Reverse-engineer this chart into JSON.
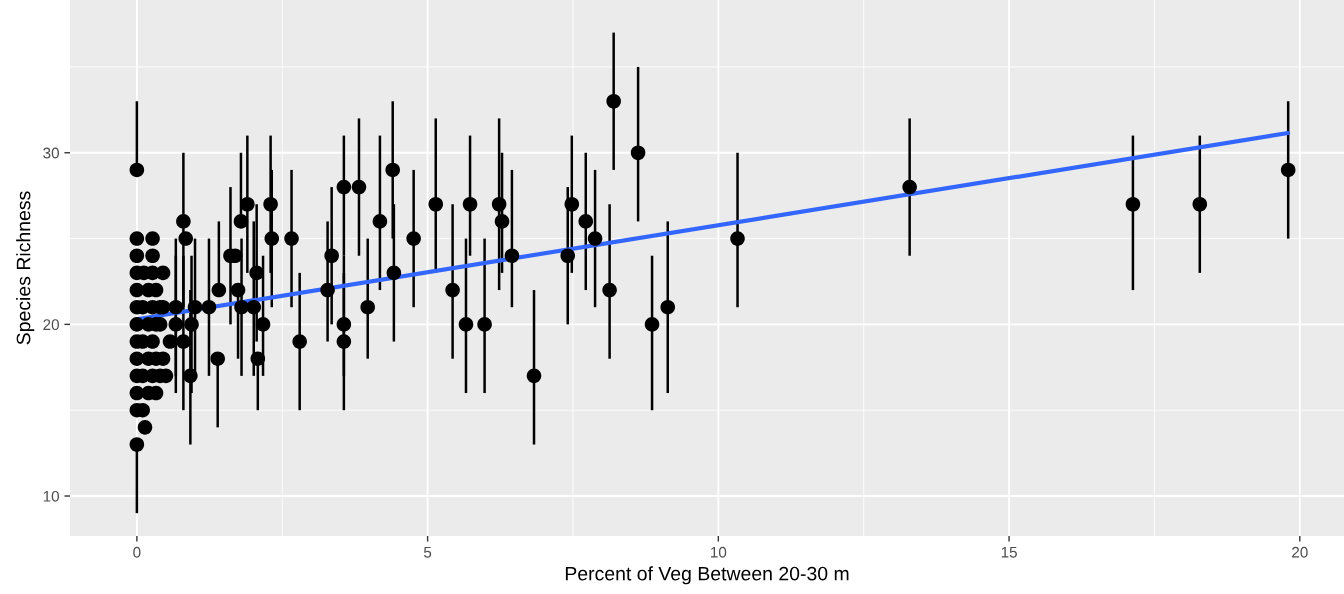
{
  "chart_data": {
    "type": "scatter",
    "xlabel": "Percent of Veg Between 20-30 m",
    "ylabel": "Species Richness",
    "xlim": [
      -1.15,
      20.76
    ],
    "ylim": [
      7.67,
      38.9
    ],
    "xticks": [
      0,
      5,
      10,
      15,
      20
    ],
    "yticks": [
      10,
      20,
      30
    ],
    "grid": true,
    "marker": "circle",
    "series": [
      {
        "color": "#000000",
        "x": [
          0,
          0,
          0,
          0,
          0,
          0,
          0,
          0,
          0,
          0,
          0,
          0,
          0,
          0.1,
          0.1,
          0.1,
          0.1,
          0.14,
          0.12,
          0.2,
          0.2,
          0.2,
          0.2,
          0.27,
          0.27,
          0.27,
          0.27,
          0.27,
          0.27,
          0.33,
          0.33,
          0.33,
          0.33,
          0.4,
          0.4,
          0.4,
          0.45,
          0.45,
          0.45,
          0.5,
          0.57,
          0.67,
          0.67,
          0.8,
          0.8,
          0.84,
          0.92,
          0.94,
          1.0,
          1.24,
          1.39,
          1.41,
          1.61,
          1.69,
          1.74,
          1.79,
          1.8,
          1.9,
          2.01,
          2.06,
          2.08,
          2.17,
          2.3,
          2.32,
          2.66,
          2.8,
          3.28,
          3.35,
          3.56,
          3.56,
          3.56,
          3.82,
          3.97,
          4.18,
          4.4,
          4.42,
          4.76,
          5.14,
          5.43,
          5.66,
          5.73,
          5.98,
          6.23,
          6.28,
          6.45,
          6.83,
          7.41,
          7.48,
          7.72,
          7.88,
          8.13,
          8.2,
          8.62,
          8.86,
          9.13,
          10.33,
          13.29,
          17.13,
          18.28,
          19.8
        ],
        "values": [
          29,
          25,
          24,
          23,
          22,
          21,
          20,
          19,
          18,
          17,
          16,
          15,
          13,
          21,
          19,
          17,
          15,
          14,
          23,
          22,
          20,
          18,
          16,
          25,
          24,
          23,
          21,
          19,
          17,
          22,
          20,
          18,
          16,
          21,
          20,
          17,
          23,
          21,
          18,
          17,
          19,
          21,
          20,
          26,
          19,
          25,
          17,
          20,
          21,
          21,
          18,
          22,
          24,
          24,
          22,
          26,
          21,
          27,
          21,
          23,
          18,
          20,
          27,
          25,
          25,
          19,
          22,
          24,
          28,
          20,
          19,
          28,
          21,
          26,
          29,
          23,
          25,
          27,
          22,
          20,
          27,
          20,
          27,
          26,
          24,
          17,
          24,
          27,
          26,
          25,
          22,
          33,
          30,
          20,
          21,
          25,
          28,
          27,
          27,
          29
        ],
        "errors": [
          [
            29,
            33
          ],
          null,
          null,
          null,
          null,
          null,
          null,
          null,
          null,
          null,
          null,
          null,
          [
            9,
            13
          ],
          null,
          null,
          null,
          null,
          null,
          null,
          null,
          null,
          null,
          null,
          null,
          null,
          null,
          null,
          null,
          null,
          null,
          null,
          null,
          null,
          null,
          null,
          null,
          null,
          null,
          null,
          null,
          null,
          4,
          4,
          [
            21,
            30
          ],
          [
            15,
            24
          ],
          null,
          [
            13,
            22
          ],
          [
            16,
            24
          ],
          [
            17,
            25
          ],
          [
            17,
            25
          ],
          [
            14,
            18
          ],
          [
            22,
            26
          ],
          [
            20,
            28
          ],
          null,
          [
            18,
            22
          ],
          [
            26,
            30
          ],
          [
            17,
            25
          ],
          [
            23,
            31
          ],
          [
            17,
            26
          ],
          [
            19,
            27
          ],
          [
            15,
            18
          ],
          [
            17,
            24
          ],
          [
            23,
            31
          ],
          [
            21,
            29
          ],
          [
            21,
            29
          ],
          [
            15,
            23
          ],
          [
            19,
            26
          ],
          [
            20,
            28
          ],
          [
            24,
            31
          ],
          [
            17,
            24
          ],
          [
            15,
            23
          ],
          [
            24,
            32
          ],
          [
            18,
            25
          ],
          [
            22,
            31
          ],
          [
            25,
            33
          ],
          [
            19,
            27
          ],
          [
            21,
            29
          ],
          [
            23,
            32
          ],
          [
            18,
            27
          ],
          [
            16,
            25
          ],
          [
            24,
            31
          ],
          [
            16,
            25
          ],
          [
            22,
            32
          ],
          [
            23,
            30
          ],
          [
            21,
            29
          ],
          [
            13,
            22
          ],
          [
            20,
            28
          ],
          [
            23,
            31
          ],
          [
            22,
            30
          ],
          [
            21,
            29
          ],
          [
            18,
            27
          ],
          [
            29,
            37
          ],
          [
            26,
            35
          ],
          [
            15,
            24
          ],
          [
            16,
            26
          ],
          [
            21,
            30
          ],
          [
            24,
            32
          ],
          [
            22,
            31
          ],
          [
            23,
            31
          ],
          [
            25,
            33
          ]
        ]
      },
      {
        "type": "line",
        "color": "#3366ff",
        "marker": "none",
        "x": [
          0,
          19.8
        ],
        "values": [
          20.3,
          31.15
        ]
      }
    ]
  }
}
